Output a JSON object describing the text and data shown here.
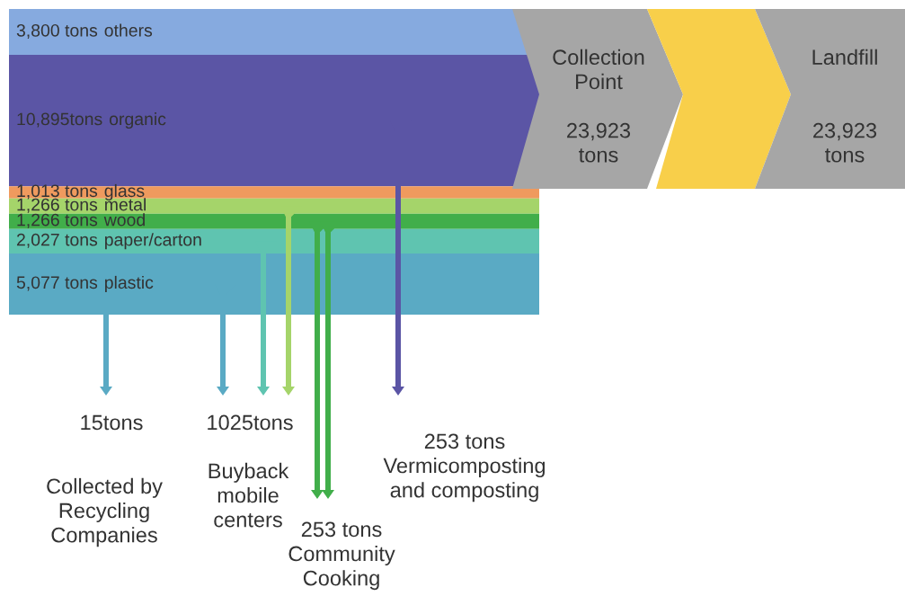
{
  "chart_data": {
    "type": "other",
    "categories": [
      "others",
      "organic",
      "glass",
      "metal",
      "wood",
      "paper/carton",
      "plastic"
    ],
    "value_labels": [
      "3,800 tons",
      "10,895tons",
      "1,013 tons",
      "1,266 tons",
      "1,266 tons",
      "2,027 tons",
      "5,077 tons"
    ],
    "values": [
      3800,
      10895,
      1013,
      1266,
      1266,
      2027,
      5077
    ],
    "colors": [
      "#86aadf",
      "#5b55a5",
      "#ef9a5e",
      "#a5d46a",
      "#41ae4a",
      "#5fc4b0",
      "#5aaac4"
    ],
    "annotations": [
      "Collection\nPoint\n\n23,923\ntons",
      "Landfill\n\n\n23,923\ntons",
      "15tons",
      "Collected by\nRecycling\nCompanies",
      "1025tons",
      "Buyback\nmobile\ncenters",
      "253 tons\nVermicomposting\nand composting",
      "253 tons\nCommunity\nCooking"
    ]
  }
}
